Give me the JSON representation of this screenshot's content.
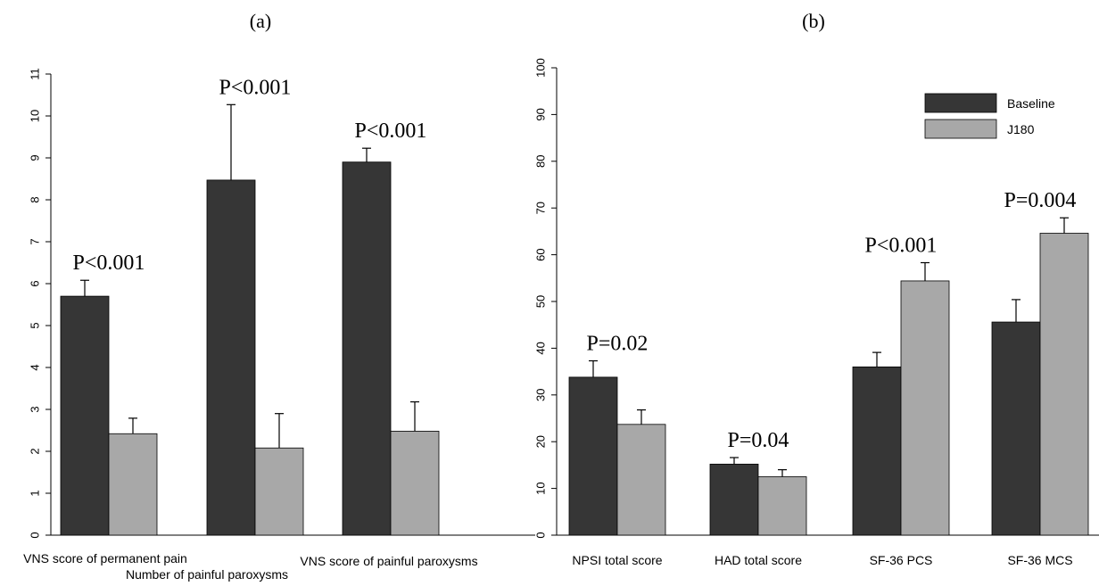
{
  "colors": {
    "baseline": "#363636",
    "j180": "#a8a8a8"
  },
  "chart_data": [
    {
      "type": "bar",
      "panel_label": "(a)",
      "categories": [
        "VNS score of permanent pain",
        "Number of painful paroxysms",
        "VNS score of painful paroxysms"
      ],
      "series": [
        {
          "name": "Baseline",
          "values": [
            5.7,
            8.47,
            8.9
          ],
          "errors": [
            0.38,
            1.8,
            0.33
          ]
        },
        {
          "name": "J180",
          "values": [
            2.42,
            2.08,
            2.48
          ],
          "errors": [
            0.37,
            0.82,
            0.7
          ]
        }
      ],
      "annotations": [
        "P<0.001",
        "P<0.001",
        "P<0.001"
      ],
      "yticks": [
        0,
        1,
        2,
        3,
        4,
        5,
        6,
        7,
        8,
        9,
        10,
        11
      ],
      "ylim": [
        0,
        11
      ]
    },
    {
      "type": "bar",
      "panel_label": "(b)",
      "categories": [
        "NPSI total score",
        "HAD total score",
        "SF-36 PCS",
        "SF-36 MCS"
      ],
      "series": [
        {
          "name": "Baseline",
          "values": [
            33.8,
            15.2,
            36.0,
            45.6
          ],
          "errors": [
            3.5,
            1.4,
            3.1,
            4.8
          ]
        },
        {
          "name": "J180",
          "values": [
            23.7,
            12.5,
            54.4,
            64.6
          ],
          "errors": [
            3.1,
            1.5,
            3.9,
            3.3
          ]
        }
      ],
      "annotations": [
        "P=0.02",
        "P=0.04",
        "P<0.001",
        "P=0.004"
      ],
      "yticks": [
        0,
        10,
        20,
        30,
        40,
        50,
        60,
        70,
        80,
        90,
        100
      ],
      "ylim": [
        0,
        100
      ],
      "legend": {
        "position": "top-right",
        "entries": [
          "Baseline",
          "J180"
        ]
      }
    }
  ]
}
